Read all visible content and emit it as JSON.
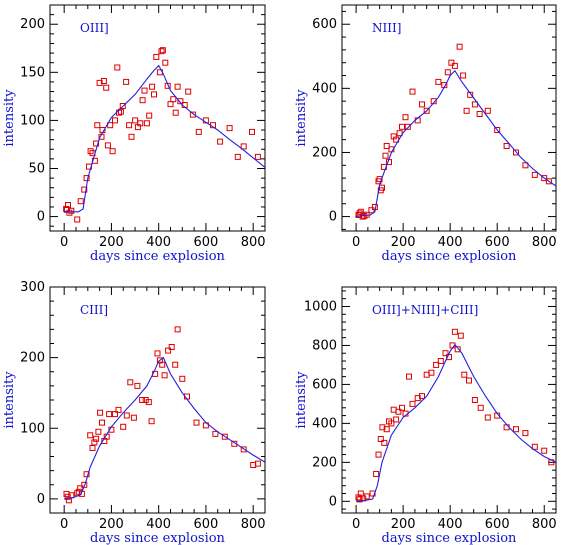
{
  "colors": {
    "axis_title": "#1010d0",
    "model_line": "#2020e0",
    "observed_points": "#e00000"
  },
  "chart_data": [
    {
      "type": "scatter",
      "panel_label": "OIII]",
      "xlabel": "days since explosion",
      "ylabel": "intensity",
      "xlim": [
        -60,
        850
      ],
      "ylim": [
        -15,
        220
      ],
      "xticks": [
        0,
        200,
        400,
        600,
        800
      ],
      "yticks": [
        0,
        50,
        100,
        150,
        200
      ],
      "grid": false,
      "series": [
        {
          "kind": "points",
          "x": [
            8,
            12,
            16,
            22,
            30,
            55,
            70,
            85,
            95,
            105,
            112,
            120,
            130,
            135,
            140,
            150,
            158,
            162,
            168,
            178,
            185,
            195,
            205,
            215,
            225,
            232,
            240,
            248,
            262,
            275,
            285,
            300,
            312,
            322,
            332,
            340,
            350,
            360,
            372,
            380,
            390,
            405,
            412,
            418,
            428,
            438,
            450,
            462,
            472,
            480,
            492,
            510,
            525,
            545,
            570,
            600,
            630,
            660,
            700,
            735,
            760,
            795,
            820
          ],
          "y": [
            8,
            7,
            12,
            4,
            6,
            -3,
            16,
            28,
            40,
            52,
            68,
            66,
            58,
            76,
            95,
            139,
            83,
            90,
            141,
            134,
            74,
            95,
            68,
            100,
            155,
            108,
            109,
            115,
            140,
            95,
            83,
            100,
            93,
            97,
            121,
            131,
            97,
            105,
            135,
            127,
            166,
            150,
            172,
            173,
            160,
            136,
            117,
            122,
            108,
            135,
            120,
            116,
            130,
            106,
            88,
            100,
            95,
            78,
            92,
            62,
            73,
            88,
            62
          ]
        },
        {
          "kind": "model",
          "x": [
            0,
            60,
            80,
            100,
            150,
            200,
            250,
            300,
            350,
            380,
            400,
            420,
            450,
            500,
            550,
            600,
            650,
            700,
            750,
            800,
            850
          ],
          "y": [
            5,
            5,
            8,
            40,
            82,
            103,
            115,
            127,
            143,
            152,
            157,
            148,
            131,
            116,
            106,
            98,
            90,
            80,
            71,
            61,
            51
          ]
        }
      ]
    },
    {
      "type": "scatter",
      "panel_label": "NIII]",
      "xlabel": "days since explosion",
      "ylabel": "intensity",
      "xlim": [
        -60,
        850
      ],
      "ylim": [
        -45,
        660
      ],
      "xticks": [
        0,
        200,
        400,
        600,
        800
      ],
      "yticks": [
        0,
        200,
        400,
        600
      ],
      "grid": false,
      "series": [
        {
          "kind": "points",
          "x": [
            10,
            15,
            20,
            28,
            35,
            45,
            65,
            80,
            95,
            100,
            105,
            110,
            118,
            125,
            130,
            140,
            150,
            160,
            170,
            185,
            195,
            210,
            220,
            240,
            262,
            280,
            300,
            330,
            350,
            375,
            390,
            405,
            420,
            440,
            455,
            470,
            485,
            505,
            525,
            560,
            600,
            640,
            680,
            720,
            760,
            800,
            820
          ],
          "y": [
            5,
            10,
            15,
            0,
            2,
            6,
            20,
            30,
            110,
            117,
            82,
            90,
            155,
            190,
            220,
            170,
            210,
            250,
            240,
            260,
            280,
            310,
            280,
            390,
            300,
            350,
            330,
            360,
            420,
            410,
            450,
            480,
            470,
            530,
            440,
            330,
            380,
            350,
            320,
            330,
            270,
            220,
            200,
            160,
            130,
            120,
            110
          ]
        },
        {
          "kind": "model",
          "x": [
            0,
            30,
            60,
            80,
            100,
            150,
            200,
            250,
            300,
            350,
            380,
            400,
            420,
            450,
            500,
            550,
            600,
            650,
            700,
            750,
            800,
            850
          ],
          "y": [
            0,
            3,
            5,
            15,
            100,
            200,
            262,
            300,
            330,
            372,
            410,
            440,
            455,
            420,
            370,
            320,
            270,
            228,
            185,
            150,
            120,
            95
          ]
        }
      ]
    },
    {
      "type": "scatter",
      "panel_label": "CIII]",
      "xlabel": "days since explosion",
      "ylabel": "intensity",
      "xlim": [
        -60,
        850
      ],
      "ylim": [
        -20,
        300
      ],
      "xticks": [
        0,
        200,
        400,
        600,
        800
      ],
      "yticks": [
        0,
        100,
        200,
        300
      ],
      "grid": false,
      "series": [
        {
          "kind": "points",
          "x": [
            10,
            15,
            20,
            30,
            55,
            62,
            68,
            75,
            85,
            95,
            110,
            120,
            128,
            135,
            145,
            152,
            160,
            170,
            180,
            190,
            200,
            215,
            230,
            250,
            265,
            280,
            295,
            310,
            330,
            345,
            358,
            370,
            385,
            395,
            405,
            415,
            425,
            440,
            455,
            470,
            480,
            500,
            520,
            560,
            600,
            640,
            680,
            720,
            760,
            800,
            820
          ],
          "y": [
            7,
            3,
            -2,
            5,
            8,
            10,
            15,
            7,
            20,
            35,
            90,
            72,
            80,
            85,
            95,
            122,
            108,
            82,
            88,
            120,
            98,
            120,
            126,
            102,
            118,
            165,
            115,
            160,
            140,
            140,
            137,
            110,
            177,
            206,
            196,
            190,
            175,
            210,
            215,
            190,
            240,
            170,
            145,
            108,
            104,
            92,
            88,
            78,
            70,
            48,
            50
          ]
        },
        {
          "kind": "model",
          "x": [
            0,
            40,
            70,
            90,
            110,
            150,
            200,
            250,
            300,
            350,
            380,
            400,
            420,
            450,
            500,
            550,
            600,
            650,
            700,
            750,
            800,
            850
          ],
          "y": [
            0,
            2,
            6,
            22,
            45,
            75,
            102,
            122,
            140,
            160,
            180,
            195,
            200,
            177,
            150,
            128,
            108,
            95,
            84,
            73,
            62,
            52
          ]
        }
      ]
    },
    {
      "type": "scatter",
      "panel_label": "OIII]+NIII]+CIII]",
      "xlabel": "days since explosion",
      "ylabel": "intensity",
      "xlim": [
        -60,
        850
      ],
      "ylim": [
        -60,
        1100
      ],
      "xticks": [
        0,
        200,
        400,
        600,
        800
      ],
      "yticks": [
        0,
        200,
        400,
        600,
        800,
        1000
      ],
      "grid": false,
      "series": [
        {
          "kind": "points",
          "x": [
            10,
            15,
            20,
            30,
            45,
            70,
            85,
            95,
            105,
            112,
            120,
            130,
            140,
            150,
            160,
            170,
            180,
            195,
            210,
            225,
            240,
            262,
            280,
            300,
            320,
            340,
            360,
            380,
            395,
            410,
            420,
            432,
            445,
            460,
            480,
            505,
            530,
            560,
            600,
            640,
            680,
            720,
            760,
            800,
            830
          ],
          "y": [
            20,
            10,
            40,
            15,
            25,
            40,
            140,
            240,
            320,
            380,
            300,
            370,
            410,
            400,
            470,
            420,
            460,
            480,
            450,
            640,
            500,
            530,
            540,
            650,
            660,
            700,
            720,
            760,
            740,
            800,
            870,
            780,
            850,
            650,
            620,
            520,
            480,
            430,
            440,
            380,
            370,
            350,
            280,
            260,
            200
          ]
        },
        {
          "kind": "model",
          "x": [
            0,
            40,
            70,
            90,
            110,
            150,
            200,
            250,
            300,
            350,
            380,
            400,
            420,
            450,
            500,
            550,
            600,
            650,
            700,
            750,
            800,
            850
          ],
          "y": [
            0,
            5,
            12,
            80,
            200,
            340,
            430,
            480,
            540,
            640,
            720,
            770,
            805,
            760,
            640,
            540,
            450,
            380,
            320,
            270,
            230,
            200
          ]
        }
      ]
    }
  ]
}
